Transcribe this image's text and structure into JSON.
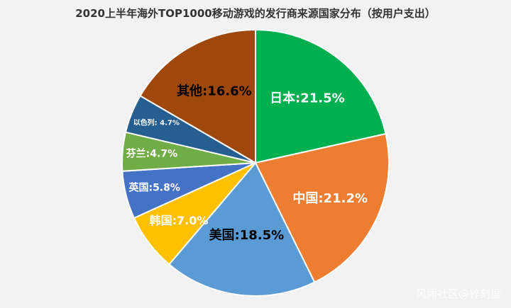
{
  "chart_data": {
    "type": "pie",
    "title": "2020上半年海外TOP1000移动游戏的发行商来源国家分布（按用户支出）",
    "slices": [
      {
        "label": "日本",
        "value": 21.5,
        "display": "日本:21.5%",
        "color": "#00b050"
      },
      {
        "label": "中国",
        "value": 21.2,
        "display": "中国:21.2%",
        "color": "#ed7d31"
      },
      {
        "label": "美国",
        "value": 18.5,
        "display": "美国:18.5%",
        "color": "#5b9bd5"
      },
      {
        "label": "韩国",
        "value": 7.0,
        "display": "韩国:7.0%",
        "color": "#ffc000"
      },
      {
        "label": "英国",
        "value": 5.8,
        "display": "英国:5.8%",
        "color": "#4472c4"
      },
      {
        "label": "芬兰",
        "value": 4.7,
        "display": "芬兰:4.7%",
        "color": "#70ad47"
      },
      {
        "label": "以色列",
        "value": 4.7,
        "display": "以色列: 4.7%",
        "color": "#255e91"
      },
      {
        "label": "其他",
        "value": 16.6,
        "display": "其他:16.6%",
        "color": "#9e480e"
      }
    ],
    "label_colors": {
      "日本": "#ffffff",
      "中国": "#ffffff",
      "美国": "#000000",
      "韩国": "#ffffff",
      "英国": "#ffffff",
      "芬兰": "#ffffff",
      "以色列": "#ffffff",
      "其他": "#000000"
    }
  },
  "watermark": "风闻社区@锌刻度"
}
